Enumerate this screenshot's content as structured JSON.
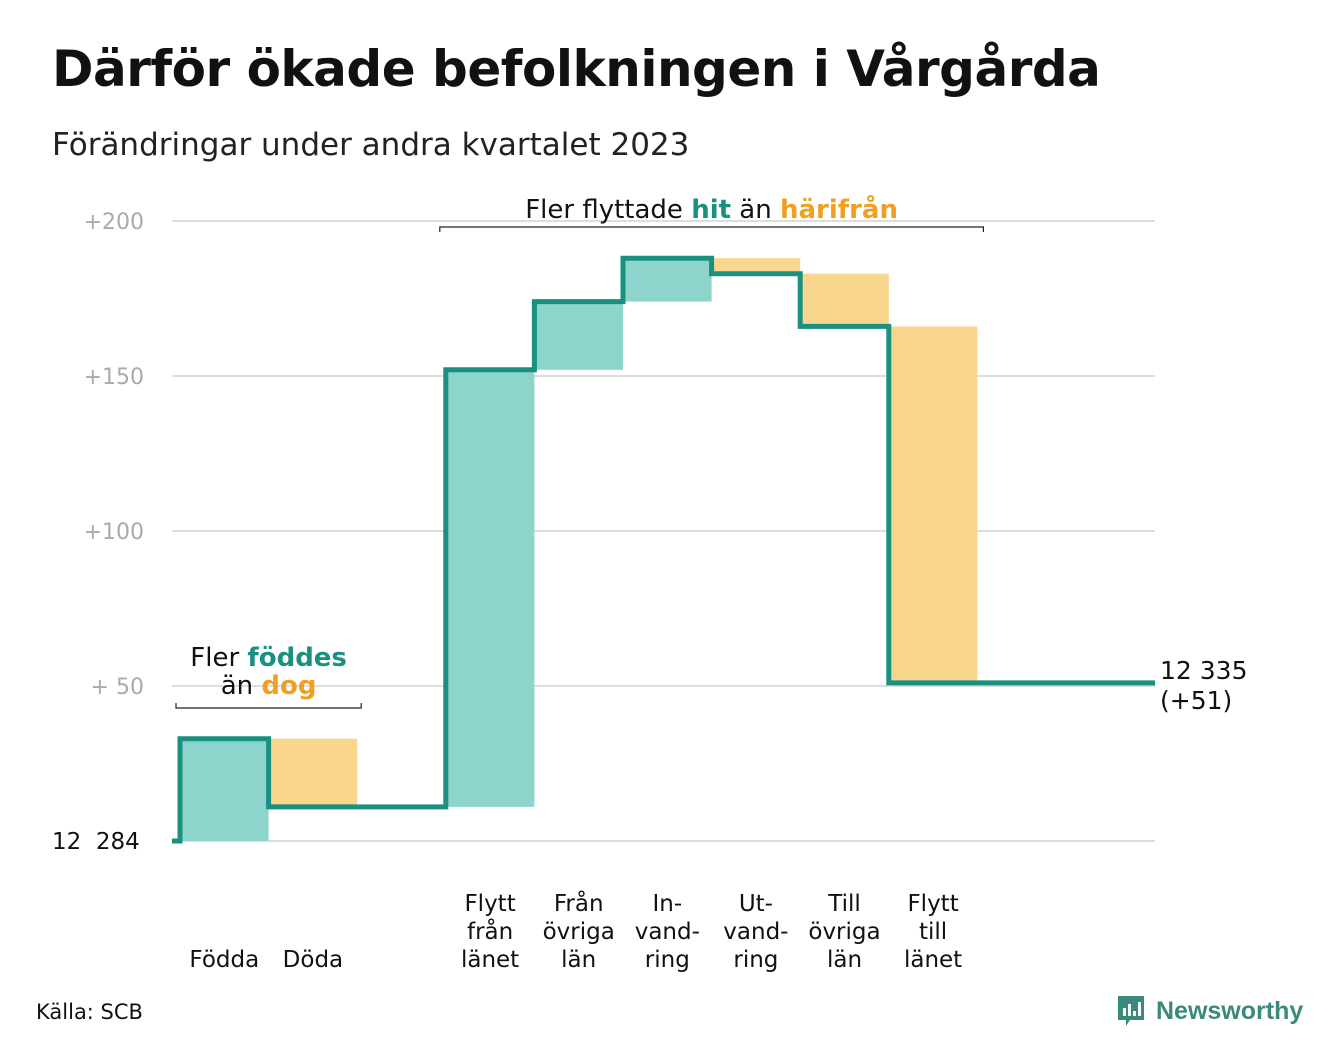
{
  "title": "Därför ökade befolkningen i Vårgårda",
  "subtitle": "Förändringar under andra kvartalet 2023",
  "source": "Källa: SCB",
  "brand": "Newsworthy",
  "colors": {
    "increase": "#8dd5cc",
    "decrease": "#f9d68e",
    "line": "#1a9080",
    "highlight_teal": "#1a9080",
    "highlight_orange": "#f0a020",
    "grid": "#dddddd",
    "tick": "#aaaaaa"
  },
  "chart_data": {
    "type": "waterfall",
    "base_label": "12  284",
    "base_value": 12284,
    "ylim": [
      0,
      200
    ],
    "yticks": [
      {
        "value": 200,
        "label": "+200"
      },
      {
        "value": 150,
        "label": "+150"
      },
      {
        "value": 100,
        "label": "+100"
      },
      {
        "value": 50,
        "label": "+  50"
      }
    ],
    "steps": [
      {
        "label": [
          "Födda"
        ],
        "change": 33,
        "kind": "increase"
      },
      {
        "label": [
          "Döda"
        ],
        "change": -22,
        "kind": "decrease"
      },
      {
        "label": [
          ""
        ],
        "change": 0,
        "kind": "gap"
      },
      {
        "label": [
          "Flytt",
          "från",
          "länet"
        ],
        "change": 141,
        "kind": "increase"
      },
      {
        "label": [
          "Från",
          "övriga",
          "län"
        ],
        "change": 22,
        "kind": "increase"
      },
      {
        "label": [
          "In-",
          "vand-",
          "ring"
        ],
        "change": 14,
        "kind": "increase"
      },
      {
        "label": [
          "Ut-",
          "vand-",
          "ring"
        ],
        "change": -5,
        "kind": "decrease"
      },
      {
        "label": [
          "Till",
          "övriga",
          "län"
        ],
        "change": -17,
        "kind": "decrease"
      },
      {
        "label": [
          "Flytt",
          "till",
          "länet"
        ],
        "change": -115,
        "kind": "decrease"
      }
    ],
    "end_label": [
      "12 335",
      "(+51)"
    ],
    "end_change": 51,
    "annotations": [
      {
        "line1_prefix": "Fler ",
        "line1_highlight": "föddes",
        "line2_prefix": "än ",
        "line2_highlight": "dog",
        "from_step": 0,
        "to_step": 1
      },
      {
        "prefix": "Fler flyttade ",
        "highlight1": "hit",
        "middle": " än ",
        "highlight2": "härifrån",
        "from_step": 3,
        "to_step": 8
      }
    ]
  }
}
